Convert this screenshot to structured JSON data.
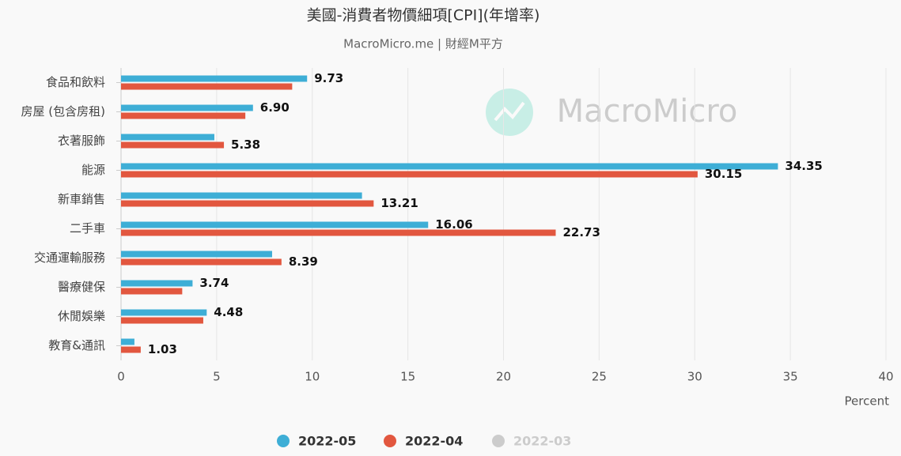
{
  "chart_data": {
    "type": "hbar",
    "title": "美國-消費者物價細項[CPI](年增率)",
    "subtitle": "MacroMicro.me | 財經M平方",
    "watermark": "MacroMicro",
    "x_label": "Percent",
    "categories": [
      "食品和飲料",
      "房屋 (包含房租)",
      "衣著服飾",
      "能源",
      "新車銷售",
      "二手車",
      "交通運輸服務",
      "醫療健保",
      "休閒娛樂",
      "教育&通訊"
    ],
    "series": [
      {
        "name": "2022-05",
        "color": "#3eaed6",
        "values": [
          9.73,
          6.9,
          4.88,
          34.35,
          12.6,
          16.06,
          7.9,
          3.74,
          4.48,
          0.7
        ],
        "value_labels": [
          "9.73",
          "6.90",
          null,
          "34.35",
          null,
          "16.06",
          null,
          "3.74",
          "4.48",
          null
        ]
      },
      {
        "name": "2022-04",
        "color": "#e2573f",
        "values": [
          8.95,
          6.5,
          5.38,
          30.15,
          13.21,
          22.73,
          8.39,
          3.2,
          4.3,
          1.03
        ],
        "value_labels": [
          null,
          null,
          "5.38",
          "30.15",
          "13.21",
          "22.73",
          "8.39",
          null,
          null,
          "1.03"
        ]
      },
      {
        "name": "2022-03",
        "color": "#cccccc",
        "hidden": true,
        "values": [
          null,
          null,
          null,
          null,
          null,
          null,
          null,
          null,
          null,
          null
        ]
      }
    ],
    "xlim": [
      0,
      40
    ],
    "xticks": [
      0,
      5,
      10,
      15,
      20,
      25,
      30,
      35,
      40
    ],
    "grid": true,
    "legend": "bottom"
  }
}
